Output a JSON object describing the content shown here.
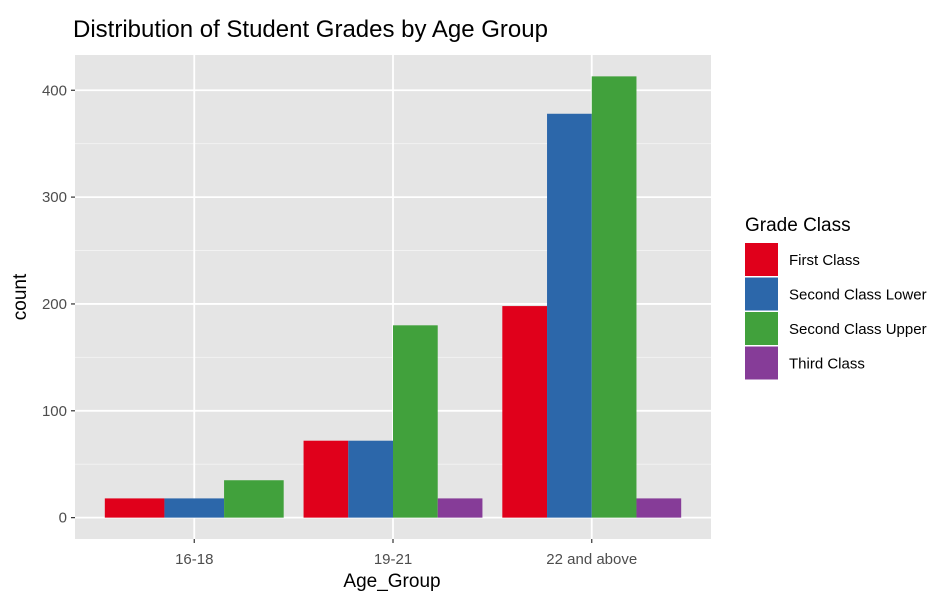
{
  "chart_data": {
    "type": "bar",
    "title": "Distribution of Student Grades by Age Group",
    "xlabel": "Age_Group",
    "ylabel": "count",
    "categories": [
      "16-18",
      "19-21",
      "22 and above"
    ],
    "series": [
      {
        "name": "First Class",
        "values": [
          18,
          72,
          198
        ],
        "color": "#e0001b"
      },
      {
        "name": "Second Class Lower",
        "values": [
          18,
          72,
          378
        ],
        "color": "#2c67aa"
      },
      {
        "name": "Second Class Upper",
        "values": [
          35,
          180,
          413
        ],
        "color": "#41a13c"
      },
      {
        "name": "Third Class",
        "values": [
          null,
          18,
          18
        ],
        "color": "#863c98"
      }
    ],
    "ylim": [
      -20,
      433
    ],
    "yticks": [
      0,
      100,
      200,
      300,
      400
    ],
    "ytick_labels": [
      "0",
      "100",
      "200",
      "300",
      "400"
    ],
    "grid": true,
    "legend": {
      "title": "Grade Class",
      "position": "right"
    },
    "colors": {
      "panel_background": "#e5e5e5",
      "grid_major": "#ffffff",
      "grid_minor": "#f2f2f2",
      "axis_text": "#4d4d4d",
      "title_text": "#000000"
    }
  }
}
